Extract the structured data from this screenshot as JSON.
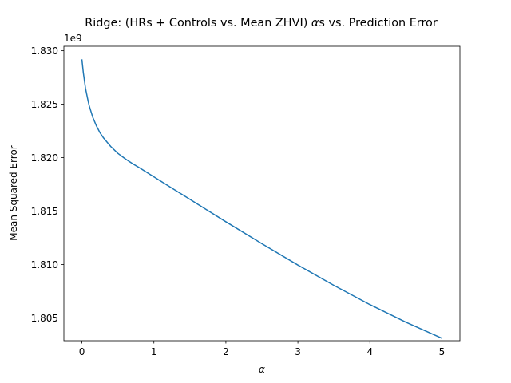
{
  "chart_data": {
    "type": "line",
    "title_prefix": "Ridge: (HRs + Controls vs. Mean ZHVI) ",
    "title_alpha": "α",
    "title_suffix": "s vs. Prediction Error",
    "xlabel": "α",
    "ylabel": "Mean Squared Error",
    "y_offset_label": "1e9",
    "x_ticks": [
      0,
      1,
      2,
      3,
      4,
      5
    ],
    "x_tick_labels": [
      "0",
      "1",
      "2",
      "3",
      "4",
      "5"
    ],
    "y_ticks": [
      1.805,
      1.81,
      1.815,
      1.82,
      1.825,
      1.83
    ],
    "y_tick_labels": [
      "1.805",
      "1.810",
      "1.815",
      "1.820",
      "1.825",
      "1.830"
    ],
    "xlim": [
      -0.25,
      5.25
    ],
    "ylim": [
      1.80287,
      1.83042
    ],
    "grid": false,
    "series": [
      {
        "color": "#1f77b4",
        "x": [
          0.0,
          0.02,
          0.05,
          0.08,
          0.1,
          0.15,
          0.2,
          0.25,
          0.3,
          0.4,
          0.5,
          0.6,
          0.7,
          0.8,
          1.0,
          1.25,
          1.5,
          1.75,
          2.0,
          2.5,
          3.0,
          3.5,
          4.0,
          4.5,
          5.0
        ],
        "y": [
          1.8292,
          1.82795,
          1.8265,
          1.8255,
          1.8249,
          1.8238,
          1.823,
          1.82235,
          1.82185,
          1.82105,
          1.8204,
          1.8199,
          1.81945,
          1.81905,
          1.8182,
          1.81715,
          1.8161,
          1.81505,
          1.814,
          1.81195,
          1.80995,
          1.80805,
          1.80625,
          1.8046,
          1.8031
        ]
      }
    ]
  }
}
